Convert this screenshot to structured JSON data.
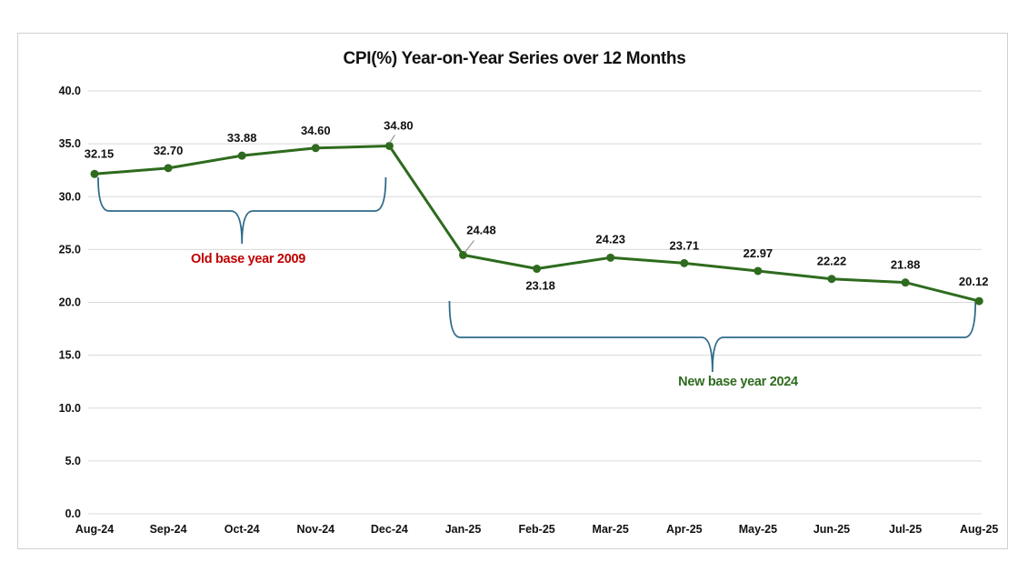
{
  "chart_data": {
    "type": "line",
    "title": "CPI(%) Year-on-Year Series over 12 Months",
    "xlabel": "",
    "ylabel": "",
    "categories": [
      "Aug-24",
      "Sep-24",
      "Oct-24",
      "Nov-24",
      "Dec-24",
      "Jan-25",
      "Feb-25",
      "Mar-25",
      "Apr-25",
      "May-25",
      "Jun-25",
      "Jul-25",
      "Aug-25"
    ],
    "values": [
      32.15,
      32.7,
      33.88,
      34.6,
      34.8,
      24.48,
      23.18,
      24.23,
      23.71,
      22.97,
      22.22,
      21.88,
      20.12
    ],
    "data_labels": [
      "32.15",
      "32.70",
      "33.88",
      "34.60",
      "34.80",
      "24.48",
      "23.18",
      "24.23",
      "23.71",
      "22.97",
      "22.22",
      "21.88",
      "20.12"
    ],
    "y_ticks": [
      "0.0",
      "5.0",
      "10.0",
      "15.0",
      "20.0",
      "25.0",
      "30.0",
      "35.0",
      "40.0"
    ],
    "ylim": [
      0,
      40
    ],
    "grid": true,
    "legend": "none",
    "line_color": "#2e6b1e",
    "grid_color": "#d9d9d9",
    "annotations": [
      {
        "text": "Old base year 2009",
        "color": "#c00000",
        "bracket_color": "#2e6b8a",
        "from": "Aug-24",
        "to": "Dec-24"
      },
      {
        "text": "New base year 2024",
        "color": "#2e6b1e",
        "bracket_color": "#2e6b8a",
        "from": "Jan-25",
        "to": "Aug-25"
      }
    ]
  }
}
